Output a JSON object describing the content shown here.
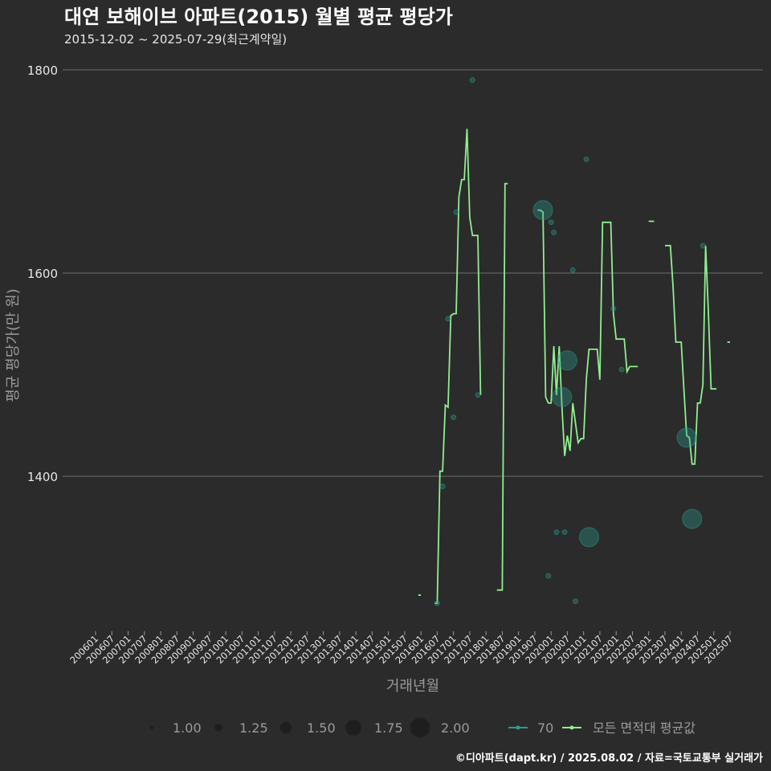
{
  "chart_data": {
    "type": "line",
    "title": "대연 보해이브 아파트(2015) 월별 평균 평당가",
    "subtitle": "2015-12-02 ~ 2025-07-29(최근계약일)",
    "xlabel": "거래년월",
    "ylabel": "평균 평당가(만 원)",
    "ylim": [
      1245,
      1820
    ],
    "y_ticks": [
      1400,
      1600,
      1800
    ],
    "x_ticks": [
      "200601",
      "200607",
      "200701",
      "200707",
      "200801",
      "200807",
      "200901",
      "200907",
      "201001",
      "201007",
      "201101",
      "201107",
      "201201",
      "201207",
      "201301",
      "201307",
      "201401",
      "201407",
      "201501",
      "201507",
      "201601",
      "201607",
      "201701",
      "201707",
      "201801",
      "201807",
      "201901",
      "201907",
      "202001",
      "202007",
      "202101",
      "202107",
      "202201",
      "202207",
      "202301",
      "202307",
      "202401",
      "202407",
      "202501",
      "202507"
    ],
    "grid": true,
    "legend_position": "bottom",
    "legend": {
      "size_title": "",
      "size_entries": [
        "1.00",
        "1.25",
        "1.50",
        "1.75",
        "2.00"
      ],
      "series_entries": [
        "70",
        "모든 면적대 평균값"
      ]
    },
    "series": [
      {
        "name": "모든 면적대 평균값",
        "color": "#90ee90",
        "points": [
          [
            "2015-12",
            1283
          ],
          [
            "2016-01",
            1283
          ],
          [
            "2016-06",
            1275
          ],
          [
            "2016-07",
            1275
          ],
          [
            "2016-08",
            1405
          ],
          [
            "2016-09",
            1405
          ],
          [
            "2016-10",
            1470
          ],
          [
            "2016-11",
            1468
          ],
          [
            "2016-12",
            1558
          ],
          [
            "2017-01",
            1560
          ],
          [
            "2017-02",
            1560
          ],
          [
            "2017-03",
            1675
          ],
          [
            "2017-04",
            1692
          ],
          [
            "2017-05",
            1692
          ],
          [
            "2017-06",
            1742
          ],
          [
            "2017-07",
            1655
          ],
          [
            "2017-08",
            1637
          ],
          [
            "2017-09",
            1637
          ],
          [
            "2017-10",
            1637
          ],
          [
            "2017-11",
            1480
          ],
          [
            "2018-05",
            1288
          ],
          [
            "2018-06",
            1288
          ],
          [
            "2018-07",
            1288
          ],
          [
            "2018-08",
            1688
          ],
          [
            "2018-09",
            1688
          ],
          [
            "2019-08",
            1662
          ],
          [
            "2019-09",
            1662
          ],
          [
            "2019-10",
            1660
          ],
          [
            "2019-11",
            1478
          ],
          [
            "2019-12",
            1472
          ],
          [
            "2020-01",
            1472
          ],
          [
            "2020-02",
            1528
          ],
          [
            "2020-03",
            1480
          ],
          [
            "2020-04",
            1528
          ],
          [
            "2020-05",
            1468
          ],
          [
            "2020-06",
            1420
          ],
          [
            "2020-07",
            1440
          ],
          [
            "2020-08",
            1425
          ],
          [
            "2020-09",
            1472
          ],
          [
            "2020-10",
            1452
          ],
          [
            "2020-11",
            1433
          ],
          [
            "2020-12",
            1437
          ],
          [
            "2021-01",
            1437
          ],
          [
            "2021-02",
            1496
          ],
          [
            "2021-03",
            1525
          ],
          [
            "2021-04",
            1525
          ],
          [
            "2021-05",
            1525
          ],
          [
            "2021-06",
            1525
          ],
          [
            "2021-07",
            1495
          ],
          [
            "2021-08",
            1650
          ],
          [
            "2021-09",
            1650
          ],
          [
            "2021-10",
            1650
          ],
          [
            "2021-11",
            1650
          ],
          [
            "2021-12",
            1560
          ],
          [
            "2022-01",
            1535
          ],
          [
            "2022-02",
            1535
          ],
          [
            "2022-03",
            1535
          ],
          [
            "2022-04",
            1535
          ],
          [
            "2022-05",
            1503
          ],
          [
            "2022-06",
            1508
          ],
          [
            "2022-07",
            1508
          ],
          [
            "2022-08",
            1508
          ],
          [
            "2022-09",
            1508
          ],
          [
            "2023-01",
            1651
          ],
          [
            "2023-02",
            1651
          ],
          [
            "2023-03",
            1651
          ],
          [
            "2023-07",
            1627
          ],
          [
            "2023-08",
            1627
          ],
          [
            "2023-09",
            1627
          ],
          [
            "2023-10",
            1586
          ],
          [
            "2023-11",
            1532
          ],
          [
            "2023-12",
            1532
          ],
          [
            "2024-01",
            1532
          ],
          [
            "2024-02",
            1485
          ],
          [
            "2024-03",
            1440
          ],
          [
            "2024-04",
            1438
          ],
          [
            "2024-05",
            1412
          ],
          [
            "2024-06",
            1412
          ],
          [
            "2024-07",
            1472
          ],
          [
            "2024-08",
            1472
          ],
          [
            "2024-09",
            1490
          ],
          [
            "2024-10",
            1627
          ],
          [
            "2024-11",
            1562
          ],
          [
            "2024-12",
            1486
          ],
          [
            "2025-01",
            1486
          ],
          [
            "2025-02",
            1486
          ],
          [
            "2025-06",
            1532
          ],
          [
            "2025-07",
            1532
          ]
        ]
      },
      {
        "name": "70",
        "color": "#2a9d8f",
        "points": [
          [
            "2016-07",
            1275,
            1.0
          ],
          [
            "2016-09",
            1390,
            1.0
          ],
          [
            "2016-11",
            1555,
            1.0
          ],
          [
            "2017-01",
            1458,
            1.0
          ],
          [
            "2017-02",
            1660,
            1.0
          ],
          [
            "2017-10",
            1480,
            1.0
          ],
          [
            "2017-08",
            1790,
            1.0
          ],
          [
            "2019-10",
            1662,
            2.0
          ],
          [
            "2019-12",
            1302,
            1.0
          ],
          [
            "2020-01",
            1650,
            1.0
          ],
          [
            "2020-02",
            1640,
            1.0
          ],
          [
            "2020-03",
            1345,
            1.0
          ],
          [
            "2020-05",
            1478,
            2.0
          ],
          [
            "2020-06",
            1345,
            1.0
          ],
          [
            "2020-07",
            1514,
            2.0
          ],
          [
            "2020-09",
            1603,
            1.0
          ],
          [
            "2020-10",
            1277,
            1.0
          ],
          [
            "2021-02",
            1712,
            1.0
          ],
          [
            "2021-03",
            1340,
            2.0
          ],
          [
            "2021-12",
            1565,
            1.0
          ],
          [
            "2022-03",
            1505,
            1.0
          ],
          [
            "2024-03",
            1438,
            2.0
          ],
          [
            "2024-05",
            1358,
            2.0
          ],
          [
            "2024-09",
            1627,
            1.0
          ]
        ]
      }
    ]
  },
  "footer": {
    "credit": "©디아파트(dapt.kr) / 2025.08.02 / 자료=국토교통부 실거래가"
  }
}
